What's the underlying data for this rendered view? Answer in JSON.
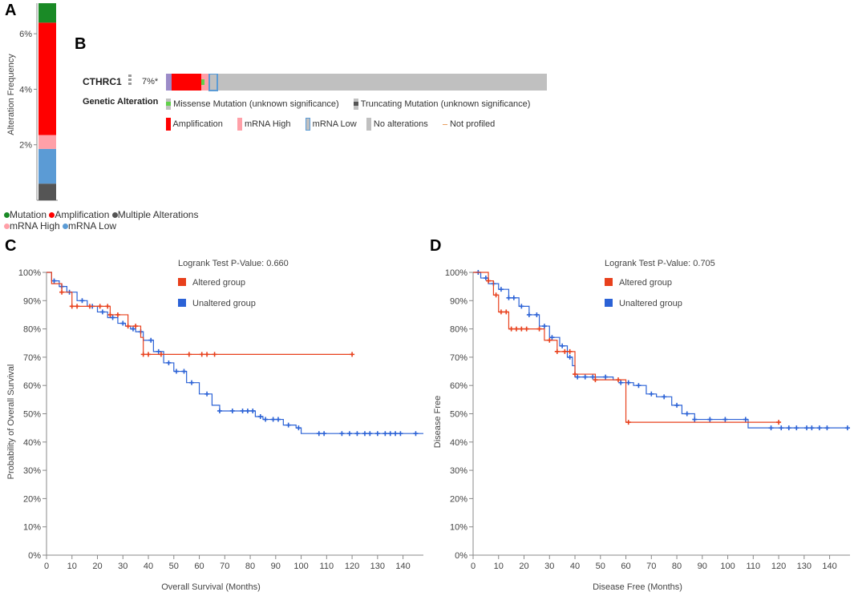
{
  "panel_labels": {
    "a": "A",
    "b": "B",
    "c": "C",
    "d": "D"
  },
  "colors": {
    "mutation": "#1a8a26",
    "amplification": "#ff0000",
    "multiple": "#555555",
    "mrna_high": "#ffa0a8",
    "mrna_low": "#5b9bd5",
    "missense": "#61d14a",
    "truncating": "#555555",
    "no_alteration": "#c0c0c0",
    "not_profiled": "#e8a060",
    "altered": "#e8401c",
    "unaltered": "#2b62d6"
  },
  "panel_a": {
    "ylabel": "Alteration Frequency",
    "ticks": [
      "6%",
      "4%",
      "2%"
    ],
    "legend": {
      "row1": [
        "Mutation",
        "Amplification",
        "Multiple Alterations"
      ],
      "row2": [
        "mRNA High",
        "mRNA Low"
      ]
    }
  },
  "panel_b": {
    "gene": "CTHRC1",
    "percent": "7%*",
    "section_title": "Genetic Alteration",
    "legend": {
      "missense": "Missense Mutation (unknown significance)",
      "truncating": "Truncating Mutation (unknown significance)",
      "amplification": "Amplification",
      "mrna_high": "mRNA High",
      "mrna_low": "mRNA Low",
      "no_alterations": "No alterations",
      "not_profiled": "Not profiled"
    }
  },
  "chart_data": [
    {
      "type": "bar",
      "title": "",
      "ylabel": "Alteration Frequency",
      "ylim": [
        0,
        7.1
      ],
      "yticks": [
        2,
        4,
        6
      ],
      "categories": [
        "CTHRC1"
      ],
      "series": [
        {
          "name": "mRNA Low-Multiple",
          "color_key": "multiple",
          "values": [
            0.6
          ]
        },
        {
          "name": "mRNA Low",
          "color_key": "mrna_low",
          "values": [
            1.25
          ]
        },
        {
          "name": "mRNA High",
          "color_key": "mrna_high",
          "values": [
            0.5
          ]
        },
        {
          "name": "Amplification",
          "color_key": "amplification",
          "values": [
            4.05
          ]
        },
        {
          "name": "Mutation",
          "color_key": "mutation",
          "values": [
            0.7
          ]
        }
      ],
      "legend": [
        "Mutation",
        "Amplification",
        "Multiple Alterations",
        "mRNA High",
        "mRNA Low"
      ]
    },
    {
      "type": "line",
      "title": "Logrank Test P-Value: 0.660",
      "xlabel": "Overall Survival (Months)",
      "ylabel": "Probability of Overall Survival",
      "xlim": [
        0,
        148
      ],
      "ylim": [
        0,
        100
      ],
      "xticks": [
        0,
        10,
        20,
        30,
        40,
        50,
        60,
        70,
        80,
        90,
        100,
        110,
        120,
        130,
        140
      ],
      "yticks": [
        0,
        10,
        20,
        30,
        40,
        50,
        60,
        70,
        80,
        90,
        100
      ],
      "series": [
        {
          "name": "Altered group",
          "color_key": "altered",
          "x": [
            0,
            2,
            6,
            10,
            17,
            21,
            25,
            26,
            32,
            35,
            37,
            38,
            47,
            120
          ],
          "y": [
            100,
            96,
            93,
            88,
            88,
            88,
            85,
            85,
            81,
            81,
            77,
            71,
            71,
            71
          ],
          "censor_x": [
            6,
            10,
            12,
            17,
            21,
            24,
            25,
            28,
            32,
            35,
            38,
            40,
            45,
            56,
            61,
            63,
            66,
            120
          ]
        },
        {
          "name": "Unaltered group",
          "color_key": "unaltered",
          "x": [
            0,
            2,
            5,
            8,
            12,
            16,
            20,
            24,
            28,
            31,
            33,
            35,
            38,
            42,
            46,
            50,
            55,
            60,
            65,
            68,
            72,
            80,
            82,
            85,
            93,
            98,
            100,
            148
          ],
          "y": [
            100,
            97,
            95,
            93,
            90,
            88,
            86,
            84,
            82,
            81,
            80,
            79,
            76,
            72,
            68,
            65,
            61,
            57,
            53,
            51,
            51,
            51,
            49,
            48,
            46,
            45,
            43,
            43
          ],
          "censor_x": [
            3,
            6,
            9,
            14,
            18,
            22,
            26,
            30,
            34,
            37,
            41,
            44,
            48,
            51,
            54,
            57,
            63,
            68,
            73,
            77,
            79,
            81,
            84,
            86,
            89,
            91,
            95,
            99,
            107,
            109,
            116,
            119,
            122,
            125,
            127,
            130,
            133,
            135,
            137,
            139,
            145
          ]
        }
      ],
      "legend": [
        "Altered group",
        "Unaltered group"
      ]
    },
    {
      "type": "line",
      "title": "Logrank Test P-Value: 0.705",
      "xlabel": "Disease Free (Months)",
      "ylabel": "Disease Free",
      "xlim": [
        0,
        148
      ],
      "ylim": [
        0,
        100
      ],
      "xticks": [
        0,
        10,
        20,
        30,
        40,
        50,
        60,
        70,
        80,
        90,
        100,
        110,
        120,
        130,
        140
      ],
      "yticks": [
        0,
        10,
        20,
        30,
        40,
        50,
        60,
        70,
        80,
        90,
        100
      ],
      "series": [
        {
          "name": "Altered group",
          "color_key": "altered",
          "x": [
            0,
            6,
            8,
            10,
            14,
            28,
            33,
            36,
            40,
            48,
            58,
            60,
            120
          ],
          "y": [
            100,
            97,
            92,
            86,
            80,
            76,
            72,
            72,
            64,
            62,
            62,
            47,
            47
          ],
          "censor_x": [
            6,
            9,
            11,
            13,
            15,
            17,
            19,
            21,
            26,
            30,
            33,
            36,
            38,
            40,
            48,
            57,
            61,
            120
          ]
        },
        {
          "name": "Unaltered group",
          "color_key": "unaltered",
          "x": [
            0,
            3,
            6,
            10,
            14,
            18,
            22,
            26,
            30,
            34,
            37,
            39,
            40,
            50,
            55,
            58,
            63,
            68,
            72,
            78,
            82,
            87,
            95,
            106,
            108,
            148
          ],
          "y": [
            100,
            98,
            96,
            94,
            91,
            88,
            85,
            81,
            77,
            74,
            70,
            67,
            63,
            63,
            62,
            61,
            60,
            57,
            56,
            53,
            50,
            48,
            48,
            48,
            45,
            45
          ],
          "censor_x": [
            2,
            5,
            8,
            11,
            14,
            16,
            19,
            22,
            25,
            28,
            31,
            35,
            38,
            41,
            44,
            47,
            52,
            58,
            61,
            65,
            70,
            75,
            80,
            84,
            87,
            93,
            99,
            107,
            117,
            121,
            124,
            127,
            131,
            133,
            136,
            139,
            147
          ]
        }
      ],
      "legend": [
        "Altered group",
        "Unaltered group"
      ]
    }
  ]
}
